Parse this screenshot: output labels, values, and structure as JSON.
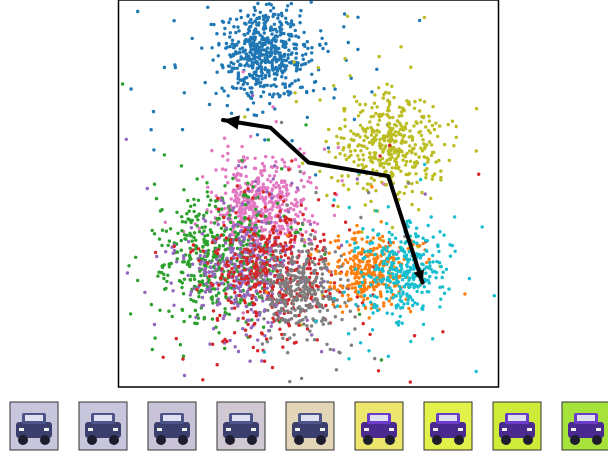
{
  "chart_data": {
    "type": "scatter",
    "title": "",
    "xlabel": "",
    "ylabel": "",
    "xlim": [
      -10,
      10
    ],
    "ylim": [
      -10,
      10
    ],
    "grid": false,
    "axes_ticks": false,
    "clusters": [
      {
        "color": "#1f77b4",
        "center": [
          -2.3,
          7.2
        ],
        "spread": 1.2,
        "count": 600
      },
      {
        "color": "#bcbd22",
        "center": [
          4.3,
          2.6
        ],
        "spread": 1.3,
        "count": 450
      },
      {
        "color": "#e377c2",
        "center": [
          -2.5,
          -0.5
        ],
        "spread": 1.2,
        "count": 450
      },
      {
        "color": "#2ca02c",
        "center": [
          -5.0,
          -3.2
        ],
        "spread": 1.6,
        "count": 500
      },
      {
        "color": "#9467bd",
        "center": [
          -3.2,
          -4.0
        ],
        "spread": 1.6,
        "count": 450
      },
      {
        "color": "#d62728",
        "center": [
          -1.8,
          -4.2
        ],
        "spread": 1.6,
        "count": 450
      },
      {
        "color": "#7f7f7f",
        "center": [
          -0.3,
          -5.0
        ],
        "spread": 1.1,
        "count": 350
      },
      {
        "color": "#ff7f0e",
        "center": [
          3.2,
          -4.0
        ],
        "spread": 0.9,
        "count": 300
      },
      {
        "color": "#17becf",
        "center": [
          4.9,
          -4.0
        ],
        "spread": 1.2,
        "count": 350
      }
    ],
    "trajectory": {
      "color": "#000000",
      "points": [
        [
          6.0,
          -4.6
        ],
        [
          4.2,
          0.9
        ],
        [
          0.0,
          1.6
        ],
        [
          -2.0,
          3.4
        ],
        [
          -4.5,
          3.8
        ]
      ],
      "arrow_at": "end"
    }
  },
  "thumbnails": {
    "count": 9,
    "colors": [
      "#c8c6dc",
      "#c8c6dc",
      "#c9c3d8",
      "#d0c8d2",
      "#e3d6b8",
      "#ece66c",
      "#e3f24a",
      "#cfeb3a",
      "#a7e23a"
    ]
  }
}
